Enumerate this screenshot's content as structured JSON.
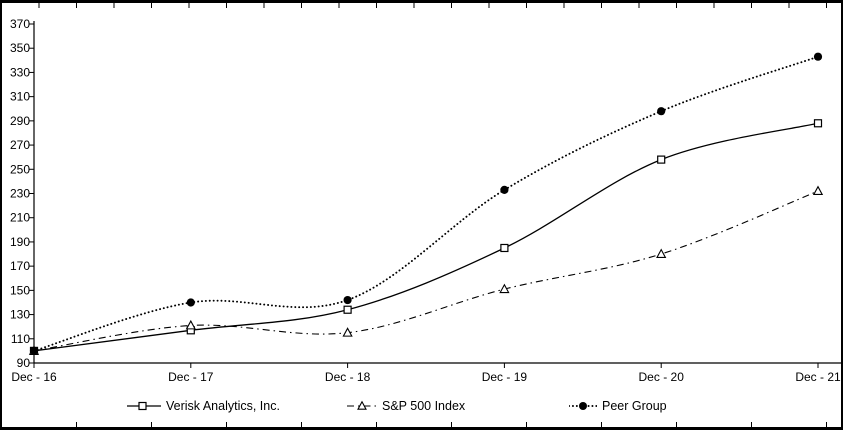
{
  "chart_data": {
    "type": "line",
    "title": "",
    "categories": [
      "Dec - 16",
      "Dec - 17",
      "Dec - 18",
      "Dec - 19",
      "Dec - 20",
      "Dec - 21"
    ],
    "series": [
      {
        "name": "Verisk Analytics, Inc.",
        "marker": "square-open",
        "line_style": "solid",
        "values": [
          100,
          117,
          134,
          185,
          258,
          288
        ]
      },
      {
        "name": "S&P 500 Index",
        "marker": "triangle-open",
        "line_style": "dash-dot",
        "values": [
          100,
          121,
          115,
          151,
          180,
          232
        ]
      },
      {
        "name": "Peer Group",
        "marker": "circle-filled",
        "line_style": "dotted",
        "values": [
          100,
          140,
          142,
          233,
          298,
          343
        ]
      }
    ],
    "ylim": [
      90,
      370
    ],
    "ytick_step": 20,
    "xlabel": "",
    "ylabel": "",
    "grid": "off",
    "legend_position": "bottom",
    "colors": {
      "line": "#000000",
      "background": "#ffffff",
      "frame": "#000000"
    }
  }
}
